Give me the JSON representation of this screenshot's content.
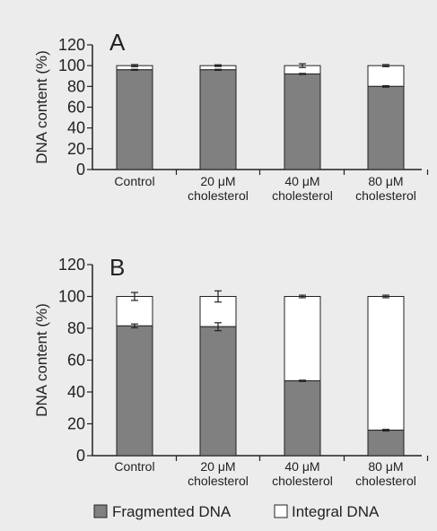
{
  "legend": {
    "fragmented_label": "Fragmented DNA",
    "integral_label": "Integral DNA"
  },
  "colors": {
    "background": "#ececec",
    "fragmented": "#808080",
    "integral": "#ffffff",
    "axis": "#222222"
  },
  "chart_data": [
    {
      "type": "bar",
      "stacked": true,
      "panel_label": "A",
      "ylabel": "DNA content (%)",
      "ylim": [
        0,
        120
      ],
      "yticks": [
        0,
        20,
        40,
        60,
        80,
        100,
        120
      ],
      "categories": [
        [
          "Control"
        ],
        [
          "20 μM",
          "cholesterol"
        ],
        [
          "40 μM",
          "cholesterol"
        ],
        [
          "80 μM",
          "cholesterol"
        ]
      ],
      "series": [
        {
          "name": "Fragmented DNA",
          "values": [
            96,
            96,
            92,
            80
          ],
          "errors": [
            0.5,
            0.5,
            0.5,
            0.7
          ]
        },
        {
          "name": "Integral DNA",
          "values": [
            4,
            4,
            8,
            20
          ],
          "errors": [
            1,
            0.8,
            1.8,
            1
          ]
        }
      ]
    },
    {
      "type": "bar",
      "stacked": true,
      "panel_label": "B",
      "ylabel": "DNA content (%)",
      "ylim": [
        0,
        120
      ],
      "yticks": [
        0,
        20,
        40,
        60,
        80,
        100,
        120
      ],
      "categories": [
        [
          "Control"
        ],
        [
          "20 μM",
          "cholesterol"
        ],
        [
          "40 μM",
          "cholesterol"
        ],
        [
          "80 μM",
          "cholesterol"
        ]
      ],
      "series": [
        {
          "name": "Fragmented DNA",
          "values": [
            81.5,
            81,
            47,
            16
          ],
          "errors": [
            1.2,
            2.5,
            0.4,
            0.5
          ]
        },
        {
          "name": "Integral DNA",
          "values": [
            18.5,
            19,
            53,
            84
          ],
          "errors": [
            2.5,
            3.5,
            0.8,
            0.8
          ]
        }
      ]
    }
  ]
}
